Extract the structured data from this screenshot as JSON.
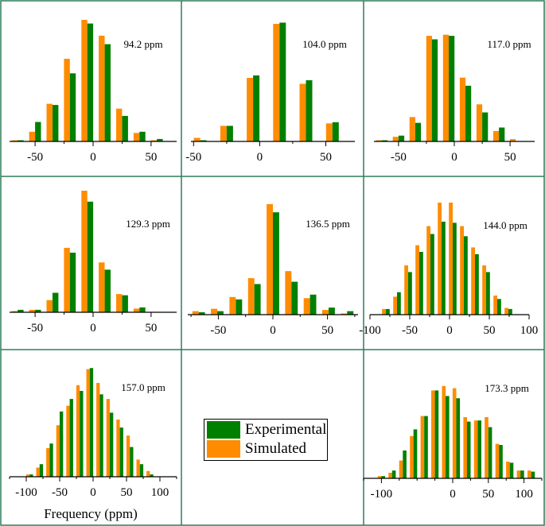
{
  "colors": {
    "experimental": "#008000",
    "simulated": "#ff8c00",
    "frame": "#2e7d5b",
    "axis": "#000000"
  },
  "legend": {
    "experimental_label": "Experimental",
    "simulated_label": "Simulated"
  },
  "xlabel": "Frequency (ppm)",
  "chart_data": [
    {
      "type": "bar",
      "title": "94.2 ppm",
      "xlim": [
        -72,
        72
      ],
      "ticks": [
        "-50",
        "0",
        "50"
      ],
      "tick_values": [
        -50,
        0,
        50
      ],
      "x": [
        -65,
        -50,
        -35,
        -20,
        -5,
        10,
        25,
        40,
        55
      ],
      "series": [
        {
          "name": "Simulated",
          "values": [
            1,
            8,
            31,
            68,
            100,
            87,
            27,
            7,
            1
          ]
        },
        {
          "name": "Experimental",
          "values": [
            1,
            16,
            30,
            56,
            97,
            80,
            21,
            8,
            2
          ]
        }
      ]
    },
    {
      "type": "bar",
      "title": "104.0 ppm",
      "xlim": [
        -52,
        72
      ],
      "ticks": [
        "-50",
        "0",
        "50"
      ],
      "tick_values": [
        -50,
        0,
        50
      ],
      "x": [
        -45,
        -25,
        -5,
        15,
        35,
        55
      ],
      "series": [
        {
          "name": "Simulated",
          "values": [
            3,
            13,
            53,
            98,
            48,
            15
          ]
        },
        {
          "name": "Experimental",
          "values": [
            1,
            13,
            55,
            99,
            51,
            16
          ]
        }
      ]
    },
    {
      "type": "bar",
      "title": "117.0 ppm",
      "xlim": [
        -72,
        72
      ],
      "ticks": [
        "-50",
        "0",
        "50"
      ],
      "tick_values": [
        -50,
        0,
        50
      ],
      "x": [
        -65,
        -50,
        -35,
        -20,
        -5,
        10,
        25,
        40,
        55
      ],
      "series": [
        {
          "name": "Simulated",
          "values": [
            1,
            4,
            21,
            91,
            92,
            55,
            32,
            9,
            2
          ]
        },
        {
          "name": "Experimental",
          "values": [
            1,
            5,
            16,
            88,
            91,
            48,
            25,
            12,
            0
          ]
        }
      ]
    },
    {
      "type": "bar",
      "title": "129.3 ppm",
      "xlim": [
        -72,
        72
      ],
      "ticks": [
        "-50",
        "0",
        "50"
      ],
      "tick_values": [
        -50,
        0,
        50
      ],
      "x": [
        -65,
        -50,
        -35,
        -20,
        -5,
        10,
        25,
        40,
        55
      ],
      "series": [
        {
          "name": "Simulated",
          "values": [
            1,
            2,
            10,
            53,
            100,
            41,
            15,
            3,
            0
          ]
        },
        {
          "name": "Experimental",
          "values": [
            2,
            2,
            16,
            49,
            91,
            35,
            14,
            4,
            0
          ]
        }
      ]
    },
    {
      "type": "bar",
      "title": "136.5 ppm",
      "xlim": [
        -78,
        78
      ],
      "ticks": [
        "-50",
        "0",
        "50"
      ],
      "tick_values": [
        -50,
        0,
        50
      ],
      "x": [
        -68,
        -51,
        -34,
        -17,
        0,
        17,
        34,
        51,
        68
      ],
      "series": [
        {
          "name": "Simulated",
          "values": [
            3,
            5,
            15,
            31,
            94,
            37,
            14,
            4,
            1
          ]
        },
        {
          "name": "Experimental",
          "values": [
            2,
            3,
            13,
            26,
            87,
            28,
            17,
            6,
            3
          ]
        }
      ]
    },
    {
      "type": "bar",
      "title": "144.0 ppm",
      "xlim": [
        -100,
        100
      ],
      "ticks": [
        "-100",
        "-50",
        "0",
        "50",
        "100"
      ],
      "tick_values": [
        -100,
        -50,
        0,
        50,
        100
      ],
      "x": [
        -80,
        -66,
        -52,
        -38,
        -24,
        -10,
        4,
        18,
        32,
        46,
        60,
        74
      ],
      "series": [
        {
          "name": "Simulated",
          "values": [
            5,
            16,
            44,
            62,
            79,
            100,
            100,
            79,
            60,
            44,
            17,
            6
          ]
        },
        {
          "name": "Experimental",
          "values": [
            5,
            20,
            38,
            56,
            72,
            83,
            82,
            70,
            54,
            38,
            14,
            5
          ]
        }
      ]
    },
    {
      "type": "bar",
      "title": "157.0 ppm",
      "xlim": [
        -125,
        125
      ],
      "ticks": [
        "-100",
        "-50",
        "0",
        "50",
        "100"
      ],
      "tick_values": [
        -100,
        -50,
        0,
        50,
        100
      ],
      "x": [
        -110,
        -95,
        -80,
        -65,
        -50,
        -35,
        -20,
        -5,
        10,
        25,
        40,
        55,
        70,
        85,
        100
      ],
      "series": [
        {
          "name": "Simulated",
          "values": [
            0,
            2,
            8,
            25,
            45,
            62,
            80,
            94,
            82,
            68,
            50,
            36,
            15,
            5,
            0
          ]
        },
        {
          "name": "Experimental",
          "values": [
            0,
            2,
            11,
            29,
            57,
            68,
            75,
            95,
            72,
            56,
            43,
            26,
            11,
            2,
            0
          ]
        }
      ]
    },
    {
      "type": "bar",
      "title": "173.3 ppm",
      "xlim": [
        -125,
        125
      ],
      "ticks": [
        "-100",
        "0",
        "50",
        "100"
      ],
      "tick_values": [
        -100,
        0,
        50,
        100
      ],
      "x": [
        -115,
        -100,
        -85,
        -70,
        -55,
        -40,
        -25,
        -10,
        5,
        20,
        35,
        50,
        65,
        80,
        95,
        110
      ],
      "series": [
        {
          "name": "Simulated",
          "values": [
            0,
            2,
            5,
            16,
            38,
            56,
            79,
            83,
            81,
            55,
            52,
            55,
            31,
            15,
            7,
            7
          ]
        },
        {
          "name": "Experimental",
          "values": [
            0,
            2,
            7,
            25,
            44,
            56,
            79,
            74,
            72,
            51,
            52,
            46,
            30,
            14,
            7,
            6
          ]
        }
      ]
    }
  ]
}
